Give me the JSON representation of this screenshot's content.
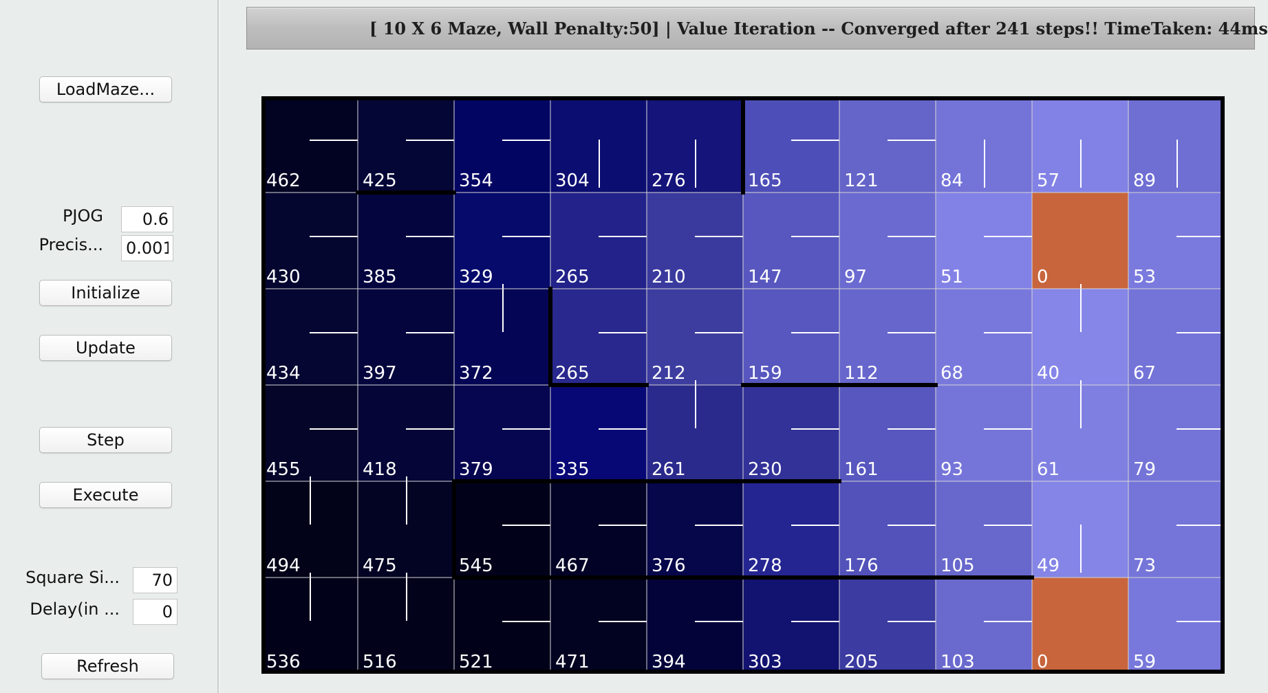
{
  "sidebar": {
    "load_maze": "LoadMaze...",
    "pjog_label": "PJOG",
    "pjog_value": "0.6",
    "precision_label": "Precis...",
    "precision_value": "0.001",
    "initialize": "Initialize",
    "update": "Update",
    "step": "Step",
    "execute": "Execute",
    "square_size_label": "Square Si...",
    "square_size_value": "70",
    "delay_label": "Delay(in ...",
    "delay_value": "0",
    "refresh": "Refresh"
  },
  "status": {
    "text": "[ 10 X 6 Maze, Wall Penalty:50] |  Value Iteration -- Converged after 241 steps!! TimeTaken: 44ms"
  },
  "maze": {
    "cols": 10,
    "rows": 6,
    "goal_color": "#c8653d",
    "values": [
      [
        462,
        425,
        354,
        304,
        276,
        165,
        121,
        84,
        57,
        89
      ],
      [
        430,
        385,
        329,
        265,
        210,
        147,
        97,
        51,
        0,
        53
      ],
      [
        434,
        397,
        372,
        265,
        212,
        159,
        112,
        68,
        40,
        67
      ],
      [
        455,
        418,
        379,
        335,
        261,
        230,
        161,
        93,
        61,
        79
      ],
      [
        494,
        475,
        545,
        467,
        376,
        278,
        176,
        105,
        49,
        73
      ],
      [
        536,
        516,
        521,
        471,
        394,
        303,
        205,
        103,
        0,
        59
      ]
    ],
    "colors": [
      [
        "#020322",
        "#040636",
        "#030563",
        "#0b0d70",
        "#14147a",
        "#4e4eb8",
        "#6464c9",
        "#7373d8",
        "#8282e6",
        "#6e6ed3"
      ],
      [
        "#050630",
        "#04053f",
        "#050a6b",
        "#22228a",
        "#3a3a9e",
        "#5757bf",
        "#6a6ad0",
        "#8282e6",
        "#c8653d",
        "#7a7ade"
      ],
      [
        "#050631",
        "#05053e",
        "#050555",
        "#28288e",
        "#3d3da0",
        "#5757bf",
        "#6666cc",
        "#7878dc",
        "#8686e8",
        "#7373d8"
      ],
      [
        "#040528",
        "#050537",
        "#050550",
        "#070775",
        "#2a2a8d",
        "#323298",
        "#5757bf",
        "#7575d9",
        "#7f7fe2",
        "#7474d8"
      ],
      [
        "#020318",
        "#030323",
        "#01011a",
        "#020226",
        "#06064a",
        "#252592",
        "#5252ba",
        "#6767cc",
        "#8585e7",
        "#7575d9"
      ],
      [
        "#01011a",
        "#02021b",
        "#010119",
        "#020221",
        "#03033a",
        "#121270",
        "#3b3ba1",
        "#6a6ace",
        "#c8653d",
        "#7878dc"
      ]
    ],
    "policy": [
      [
        "right",
        "right",
        "right",
        "down",
        "down",
        "right",
        "right",
        "down",
        "down",
        "down"
      ],
      [
        "right",
        "right",
        "right",
        "right",
        "right",
        "right",
        "right",
        "right",
        "goal",
        "right"
      ],
      [
        "right",
        "right",
        "up",
        "right",
        "right",
        "right",
        "right",
        "right",
        "up",
        "right"
      ],
      [
        "right",
        "right",
        "right",
        "right",
        "up",
        "right",
        "right",
        "right",
        "up",
        "right"
      ],
      [
        "up",
        "up",
        "right",
        "right",
        "right",
        "right",
        "right",
        "right",
        "down",
        "right"
      ],
      [
        "up",
        "up",
        "right",
        "right",
        "right",
        "right",
        "right",
        "right",
        "goal",
        "right"
      ]
    ],
    "walls": [
      [
        0,
        0,
        10,
        0
      ],
      [
        0,
        6,
        10,
        6
      ],
      [
        0,
        0,
        0,
        6
      ],
      [
        10,
        0,
        10,
        6
      ],
      [
        5,
        0,
        5,
        1
      ],
      [
        1,
        1,
        2,
        1
      ],
      [
        3,
        2,
        3,
        3
      ],
      [
        3,
        3,
        4,
        3
      ],
      [
        5,
        3,
        7,
        3
      ],
      [
        2,
        4,
        6,
        4
      ],
      [
        2,
        4,
        2,
        5
      ],
      [
        2,
        5,
        8,
        5
      ]
    ]
  }
}
